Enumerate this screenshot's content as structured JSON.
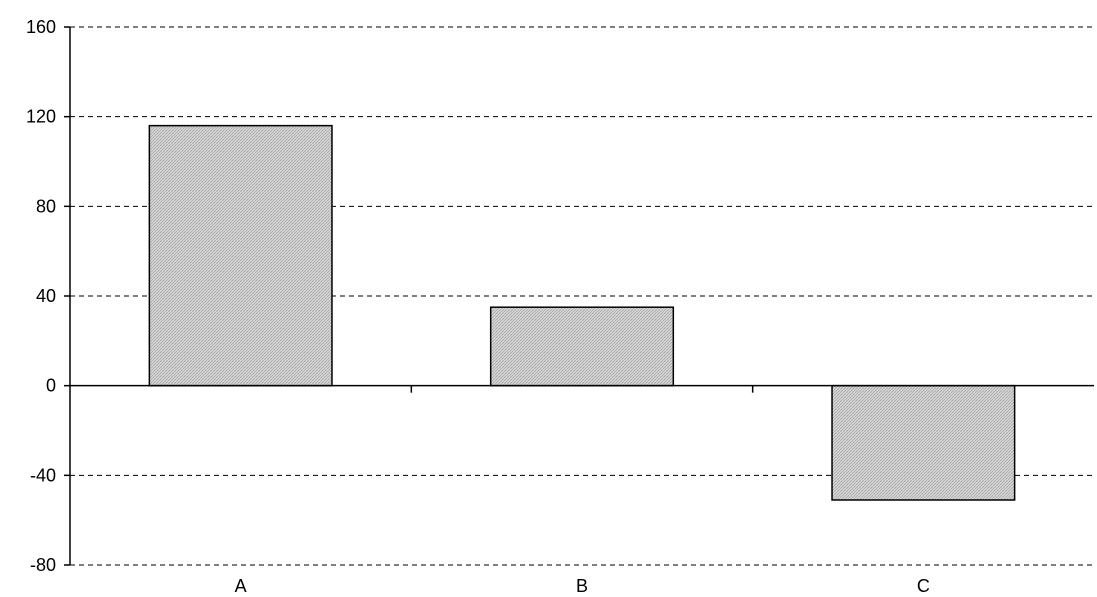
{
  "chart_data": {
    "type": "bar",
    "categories": [
      "A",
      "B",
      "C"
    ],
    "values": [
      116,
      35,
      -51
    ],
    "ylim": [
      -80,
      160
    ],
    "yticks": [
      -80,
      -40,
      0,
      40,
      80,
      120,
      160
    ],
    "grid": true,
    "bar_color": "#cccccc",
    "bar_edge_color": "#000000",
    "grid_color": "#000000"
  }
}
